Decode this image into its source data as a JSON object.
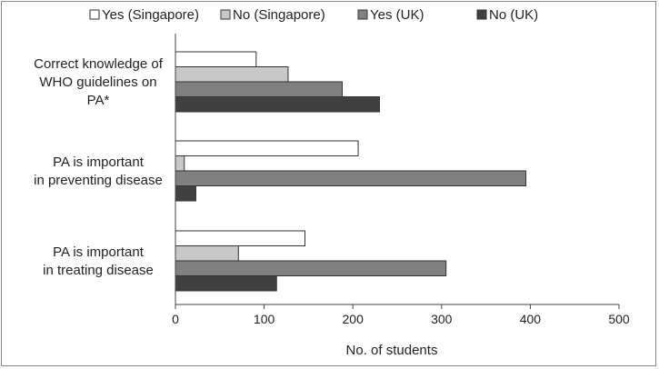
{
  "chart_data": {
    "type": "bar",
    "orientation": "horizontal",
    "title": "",
    "xlabel": "No. of students",
    "ylabel": "",
    "xlim": [
      0,
      500
    ],
    "x_ticks": [
      "0",
      "100",
      "200",
      "300",
      "400",
      "500"
    ],
    "grid": false,
    "legend_position": "top",
    "categories": [
      [
        "Correct knowledge of",
        "WHO guidelines on",
        "PA*"
      ],
      [
        "PA is important",
        "in preventing disease"
      ],
      [
        "PA is important",
        "in treating disease"
      ]
    ],
    "series": [
      {
        "name": "Yes (Singapore)",
        "color": "#ffffff",
        "values": [
          91,
          206,
          146
        ]
      },
      {
        "name": "No (Singapore)",
        "color": "#c8c8c8",
        "values": [
          127,
          10,
          71
        ]
      },
      {
        "name": "Yes (UK)",
        "color": "#808080",
        "values": [
          188,
          395,
          305
        ]
      },
      {
        "name": "No (UK)",
        "color": "#404040",
        "values": [
          230,
          23,
          114
        ]
      }
    ]
  }
}
